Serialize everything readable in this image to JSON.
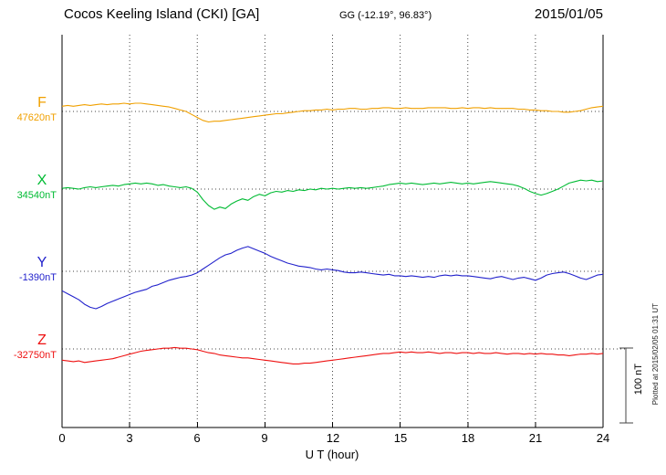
{
  "header": {
    "station_title": "Cocos Keeling Island (CKI)  [GA]",
    "coords": "GG (-12.19°,  96.83°)",
    "date": "2015/01/05"
  },
  "footer_right_note": "Plotted at 2015/02/05 01:31 UT",
  "scale_bar": {
    "label": "100 nT",
    "nT": 100
  },
  "axis": {
    "xlabel": "U T (hour)"
  },
  "chart_data": {
    "type": "line",
    "title": "Magnetogram Cocos Keeling Island (CKI) [GA] 2015/01/05",
    "xlabel": "U T (hour)",
    "x_start": 0,
    "x_end": 24,
    "x_step": 0.25,
    "x_ticks": [
      0,
      3,
      6,
      9,
      12,
      15,
      18,
      21,
      24
    ],
    "grid": "dotted-vertical-at-ticks",
    "value_meaning": "nT offset from each component baseline",
    "series": [
      {
        "name": "F",
        "baseline_label": "47620nT",
        "baseline_value": 47620,
        "color": "#f0a000",
        "values": [
          7,
          8,
          7,
          8,
          9,
          8,
          9,
          10,
          9,
          10,
          10,
          11,
          10,
          11,
          11,
          10,
          9,
          8,
          7,
          6,
          4,
          2,
          0,
          -4,
          -8,
          -12,
          -14,
          -13,
          -13,
          -12,
          -11,
          -10,
          -9,
          -8,
          -7,
          -6,
          -5,
          -4,
          -3,
          -3,
          -2,
          -1,
          0,
          1,
          1,
          2,
          2,
          3,
          2,
          3,
          3,
          4,
          4,
          3,
          3,
          4,
          4,
          5,
          5,
          4,
          4,
          5,
          4,
          4,
          4,
          5,
          5,
          5,
          5,
          4,
          4,
          5,
          4,
          5,
          5,
          4,
          5,
          4,
          4,
          4,
          4,
          3,
          3,
          2,
          2,
          1,
          1,
          0,
          0,
          -1,
          -1,
          0,
          1,
          3,
          5,
          6,
          7
        ]
      },
      {
        "name": "X",
        "baseline_label": "34540nT",
        "baseline_value": 34540,
        "color": "#00bb33",
        "values": [
          1,
          2,
          1,
          0,
          2,
          3,
          2,
          3,
          4,
          5,
          4,
          6,
          7,
          8,
          7,
          8,
          7,
          5,
          6,
          4,
          3,
          2,
          3,
          1,
          -4,
          -14,
          -22,
          -27,
          -24,
          -26,
          -20,
          -16,
          -13,
          -15,
          -10,
          -7,
          -9,
          -5,
          -3,
          -4,
          -2,
          -3,
          -1,
          -2,
          0,
          -1,
          1,
          0,
          1,
          0,
          1,
          2,
          1,
          2,
          1,
          2,
          3,
          4,
          6,
          7,
          8,
          7,
          8,
          7,
          6,
          7,
          8,
          7,
          8,
          9,
          8,
          7,
          8,
          7,
          8,
          9,
          10,
          9,
          8,
          7,
          6,
          4,
          1,
          -3,
          -6,
          -8,
          -6,
          -3,
          0,
          4,
          8,
          10,
          12,
          11,
          12,
          10,
          11
        ]
      },
      {
        "name": "Y",
        "baseline_label": "-1390nT",
        "baseline_value": -1390,
        "color": "#2222cc",
        "values": [
          -26,
          -30,
          -34,
          -38,
          -44,
          -48,
          -50,
          -47,
          -43,
          -40,
          -37,
          -34,
          -31,
          -28,
          -26,
          -24,
          -20,
          -18,
          -15,
          -12,
          -10,
          -8,
          -7,
          -5,
          -2,
          3,
          8,
          13,
          18,
          22,
          24,
          28,
          31,
          33,
          30,
          27,
          24,
          20,
          17,
          14,
          11,
          9,
          7,
          6,
          5,
          3,
          2,
          3,
          2,
          1,
          -1,
          -2,
          -2,
          -1,
          -2,
          -3,
          -4,
          -5,
          -4,
          -6,
          -6,
          -7,
          -6,
          -7,
          -8,
          -7,
          -8,
          -6,
          -5,
          -6,
          -5,
          -6,
          -6,
          -7,
          -8,
          -9,
          -10,
          -8,
          -7,
          -9,
          -11,
          -9,
          -8,
          -10,
          -12,
          -9,
          -5,
          -3,
          -2,
          -1,
          -3,
          -6,
          -9,
          -11,
          -8,
          -5,
          -4
        ]
      },
      {
        "name": "Z",
        "baseline_label": "-32750nT",
        "baseline_value": -32750,
        "color": "#ee1111",
        "values": [
          -15,
          -16,
          -17,
          -16,
          -18,
          -17,
          -16,
          -15,
          -14,
          -13,
          -11,
          -9,
          -7,
          -5,
          -3,
          -2,
          -1,
          0,
          1,
          1,
          2,
          1,
          1,
          0,
          -1,
          -3,
          -5,
          -6,
          -8,
          -9,
          -10,
          -11,
          -12,
          -12,
          -13,
          -14,
          -15,
          -16,
          -17,
          -18,
          -19,
          -20,
          -20,
          -19,
          -19,
          -18,
          -17,
          -16,
          -15,
          -14,
          -13,
          -12,
          -11,
          -10,
          -9,
          -8,
          -7,
          -6,
          -6,
          -5,
          -4,
          -5,
          -4,
          -5,
          -5,
          -4,
          -5,
          -6,
          -5,
          -5,
          -6,
          -5,
          -5,
          -6,
          -5,
          -6,
          -6,
          -5,
          -6,
          -7,
          -6,
          -6,
          -7,
          -6,
          -7,
          -6,
          -7,
          -7,
          -8,
          -8,
          -9,
          -8,
          -7,
          -7,
          -6,
          -7,
          -6
        ]
      }
    ]
  }
}
